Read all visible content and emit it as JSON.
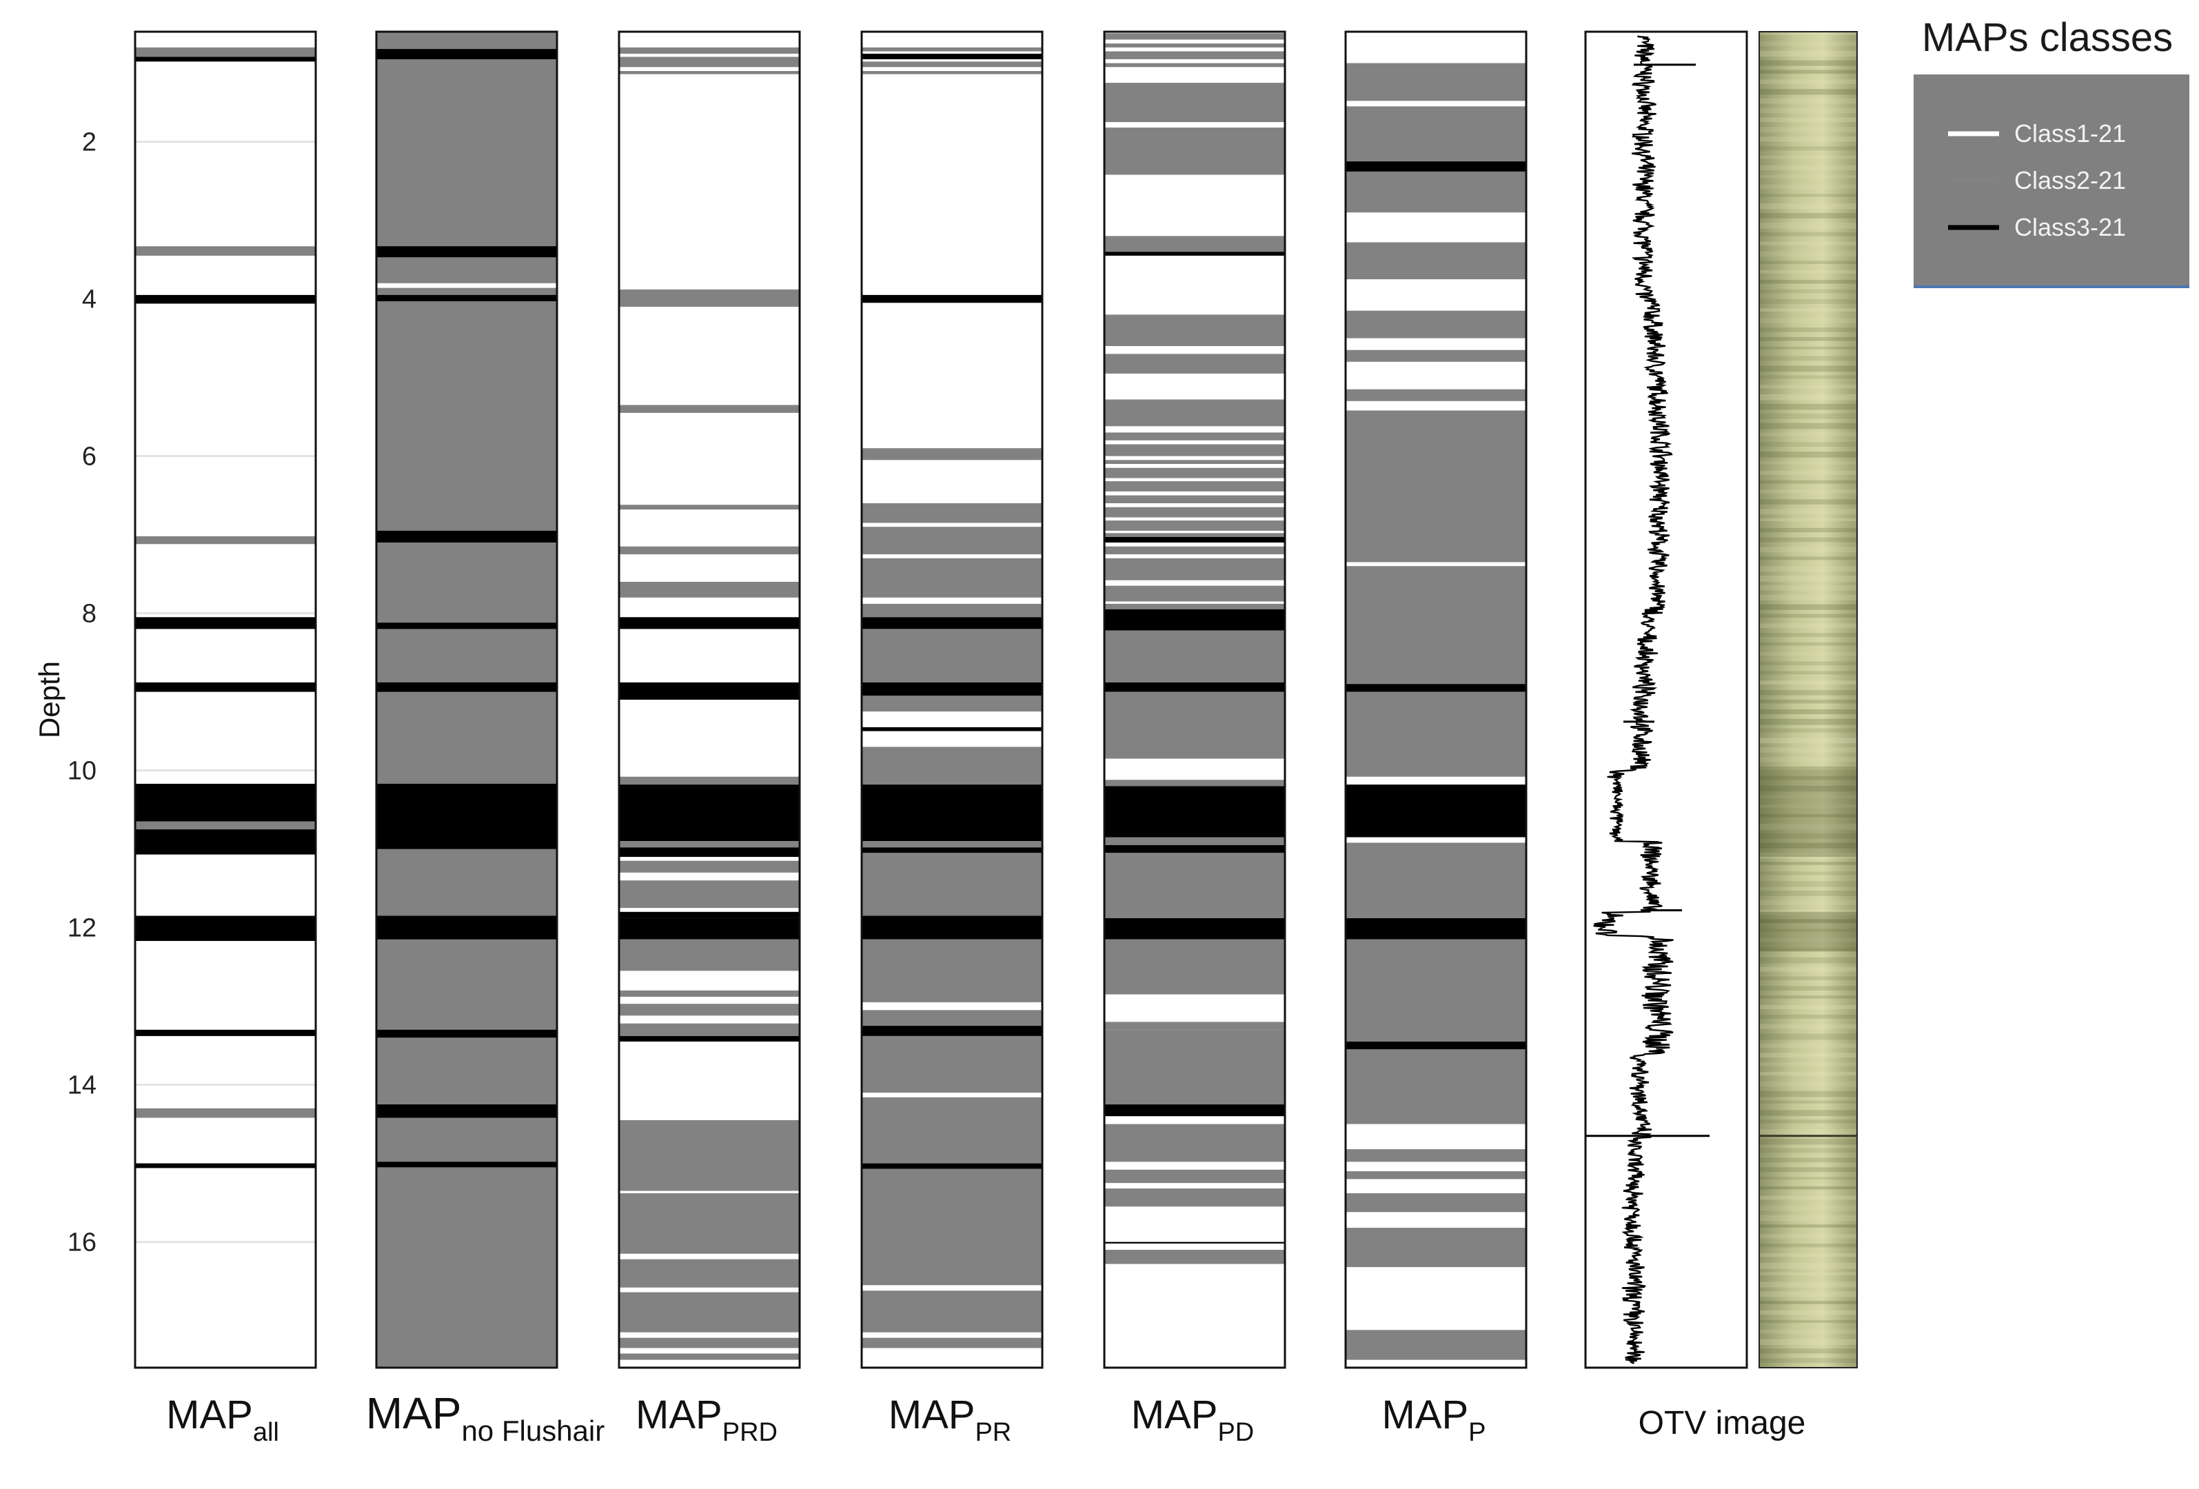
{
  "chart_data": {
    "type": "depth-track-log",
    "ylabel": "Depth",
    "ylim": [
      0.6,
      17.6
    ],
    "y_reversed": true,
    "yticks": [
      2,
      4,
      6,
      8,
      10,
      12,
      14,
      16
    ],
    "tick_labels": [
      "2",
      "4",
      "6",
      "8",
      "10",
      "12",
      "14",
      "16"
    ],
    "colors": {
      "class1": "#ffffff",
      "class2": "#828282",
      "class3": "#000000"
    },
    "legend": {
      "title": "MAPs classes",
      "placement": "top-right",
      "entries": [
        {
          "label": "Class1-21",
          "color": "#ffffff"
        },
        {
          "label": "Class2-21",
          "color": "#828282"
        },
        {
          "label": "Class3-21",
          "color": "#000000"
        }
      ]
    },
    "tracks": [
      {
        "name_main": "MAP",
        "name_sub": "all",
        "base_class": 1,
        "intervals": [
          [
            0.8,
            0.92,
            2
          ],
          [
            0.92,
            0.98,
            3
          ],
          [
            3.33,
            3.45,
            2
          ],
          [
            3.95,
            4.06,
            3
          ],
          [
            7.02,
            7.12,
            2
          ],
          [
            8.05,
            8.2,
            3
          ],
          [
            8.88,
            9.0,
            3
          ],
          [
            10.17,
            10.65,
            3
          ],
          [
            10.65,
            10.75,
            2
          ],
          [
            10.75,
            11.07,
            3
          ],
          [
            11.85,
            12.17,
            3
          ],
          [
            13.3,
            13.38,
            3
          ],
          [
            14.3,
            14.42,
            2
          ],
          [
            15.0,
            15.06,
            3
          ]
        ]
      },
      {
        "name_main": "MAP",
        "name_sub": "no Flushair",
        "base_class": 2,
        "intervals": [
          [
            0.82,
            0.95,
            3
          ],
          [
            3.33,
            3.47,
            3
          ],
          [
            3.8,
            3.86,
            1
          ],
          [
            3.95,
            4.03,
            3
          ],
          [
            6.95,
            7.1,
            3
          ],
          [
            8.12,
            8.2,
            3
          ],
          [
            8.88,
            9.0,
            3
          ],
          [
            10.17,
            11.0,
            3
          ],
          [
            11.85,
            12.15,
            3
          ],
          [
            13.3,
            13.4,
            3
          ],
          [
            14.25,
            14.42,
            3
          ],
          [
            14.98,
            15.05,
            3
          ]
        ]
      },
      {
        "name_main": "MAP",
        "name_sub": "PRD",
        "base_class": 1,
        "intervals": [
          [
            0.8,
            0.88,
            2
          ],
          [
            0.92,
            1.05,
            2
          ],
          [
            1.1,
            1.14,
            2
          ],
          [
            3.88,
            4.1,
            2
          ],
          [
            5.35,
            5.45,
            2
          ],
          [
            6.62,
            6.68,
            2
          ],
          [
            7.15,
            7.25,
            2
          ],
          [
            7.6,
            7.8,
            2
          ],
          [
            8.05,
            8.2,
            3
          ],
          [
            8.88,
            9.1,
            3
          ],
          [
            10.08,
            10.18,
            2
          ],
          [
            10.18,
            10.9,
            3
          ],
          [
            10.9,
            10.98,
            2
          ],
          [
            10.98,
            11.1,
            3
          ],
          [
            11.15,
            11.3,
            2
          ],
          [
            11.4,
            11.75,
            2
          ],
          [
            11.8,
            11.88,
            3
          ],
          [
            11.88,
            12.15,
            3
          ],
          [
            12.15,
            12.55,
            2
          ],
          [
            12.8,
            12.88,
            2
          ],
          [
            12.97,
            13.12,
            2
          ],
          [
            13.22,
            13.38,
            2
          ],
          [
            13.38,
            13.45,
            3
          ],
          [
            14.45,
            16.15,
            2
          ],
          [
            15.35,
            15.38,
            1
          ],
          [
            16.22,
            16.58,
            2
          ],
          [
            16.64,
            17.15,
            2
          ],
          [
            17.22,
            17.35,
            2
          ],
          [
            17.42,
            17.5,
            2
          ]
        ]
      },
      {
        "name_main": "MAP",
        "name_sub": "PR",
        "base_class": 1,
        "intervals": [
          [
            0.8,
            0.85,
            2
          ],
          [
            0.88,
            0.95,
            3
          ],
          [
            0.98,
            1.05,
            2
          ],
          [
            1.1,
            1.14,
            2
          ],
          [
            3.95,
            4.05,
            3
          ],
          [
            5.9,
            6.05,
            2
          ],
          [
            6.6,
            6.85,
            2
          ],
          [
            6.9,
            7.25,
            2
          ],
          [
            7.3,
            7.8,
            2
          ],
          [
            7.88,
            8.05,
            2
          ],
          [
            8.05,
            8.2,
            3
          ],
          [
            8.2,
            8.88,
            2
          ],
          [
            8.88,
            9.05,
            3
          ],
          [
            9.05,
            9.25,
            2
          ],
          [
            9.45,
            9.5,
            3
          ],
          [
            9.7,
            10.1,
            2
          ],
          [
            10.1,
            10.18,
            2
          ],
          [
            10.18,
            10.9,
            3
          ],
          [
            10.9,
            10.98,
            2
          ],
          [
            10.98,
            11.05,
            3
          ],
          [
            11.05,
            11.85,
            2
          ],
          [
            11.85,
            12.15,
            3
          ],
          [
            12.15,
            12.95,
            2
          ],
          [
            13.05,
            13.25,
            2
          ],
          [
            13.25,
            13.38,
            3
          ],
          [
            13.38,
            14.1,
            2
          ],
          [
            14.16,
            15.0,
            2
          ],
          [
            15.0,
            15.07,
            3
          ],
          [
            15.07,
            16.55,
            2
          ],
          [
            16.62,
            17.15,
            2
          ],
          [
            17.22,
            17.35,
            2
          ]
        ]
      },
      {
        "name_main": "MAP",
        "name_sub": "PD",
        "base_class": 1,
        "intervals": [
          [
            0.62,
            0.7,
            2
          ],
          [
            0.75,
            0.8,
            2
          ],
          [
            0.85,
            0.95,
            2
          ],
          [
            1.0,
            1.05,
            2
          ],
          [
            1.25,
            1.75,
            2
          ],
          [
            1.82,
            2.42,
            2
          ],
          [
            3.2,
            3.4,
            2
          ],
          [
            3.4,
            3.45,
            3
          ],
          [
            4.2,
            4.6,
            2
          ],
          [
            4.7,
            4.95,
            2
          ],
          [
            5.28,
            5.62,
            2
          ],
          [
            5.7,
            5.8,
            2
          ],
          [
            5.85,
            6.0,
            2
          ],
          [
            6.05,
            6.1,
            2
          ],
          [
            6.15,
            6.28,
            2
          ],
          [
            6.32,
            6.45,
            2
          ],
          [
            6.5,
            6.6,
            2
          ],
          [
            6.65,
            6.78,
            2
          ],
          [
            6.82,
            6.95,
            2
          ],
          [
            6.98,
            7.08,
            2
          ],
          [
            7.03,
            7.1,
            3
          ],
          [
            7.15,
            7.25,
            2
          ],
          [
            7.3,
            7.58,
            2
          ],
          [
            7.65,
            7.85,
            2
          ],
          [
            7.88,
            8.0,
            2
          ],
          [
            7.95,
            8.22,
            3
          ],
          [
            8.22,
            8.88,
            2
          ],
          [
            8.88,
            9.0,
            3
          ],
          [
            9.0,
            9.85,
            2
          ],
          [
            10.12,
            10.2,
            2
          ],
          [
            10.2,
            10.85,
            3
          ],
          [
            10.85,
            10.95,
            2
          ],
          [
            10.95,
            11.05,
            3
          ],
          [
            11.05,
            11.88,
            2
          ],
          [
            11.88,
            12.15,
            3
          ],
          [
            12.15,
            12.85,
            2
          ],
          [
            13.2,
            13.3,
            2
          ],
          [
            13.3,
            14.25,
            2
          ],
          [
            14.25,
            14.4,
            3
          ],
          [
            14.5,
            14.98,
            2
          ],
          [
            15.08,
            15.25,
            2
          ],
          [
            15.32,
            15.55,
            2
          ],
          [
            16.0,
            16.02,
            3
          ],
          [
            16.1,
            16.28,
            2
          ]
        ]
      },
      {
        "name_main": "MAP",
        "name_sub": "P",
        "base_class": 1,
        "intervals": [
          [
            1.0,
            1.48,
            2
          ],
          [
            1.55,
            2.25,
            2
          ],
          [
            2.25,
            2.38,
            3
          ],
          [
            2.38,
            2.9,
            2
          ],
          [
            3.28,
            3.75,
            2
          ],
          [
            4.15,
            4.5,
            2
          ],
          [
            4.65,
            4.8,
            2
          ],
          [
            5.15,
            5.3,
            2
          ],
          [
            5.42,
            7.35,
            2
          ],
          [
            7.4,
            8.9,
            2
          ],
          [
            8.9,
            9.0,
            3
          ],
          [
            9.0,
            10.08,
            2
          ],
          [
            10.18,
            10.85,
            3
          ],
          [
            10.92,
            11.88,
            2
          ],
          [
            11.88,
            12.15,
            3
          ],
          [
            12.15,
            13.45,
            2
          ],
          [
            13.45,
            13.55,
            3
          ],
          [
            13.55,
            14.5,
            2
          ],
          [
            14.82,
            14.98,
            2
          ],
          [
            15.1,
            15.2,
            2
          ],
          [
            15.38,
            15.62,
            2
          ],
          [
            15.82,
            16.32,
            2
          ],
          [
            17.12,
            17.5,
            2
          ]
        ]
      }
    ],
    "otv_label": "OTV image"
  }
}
